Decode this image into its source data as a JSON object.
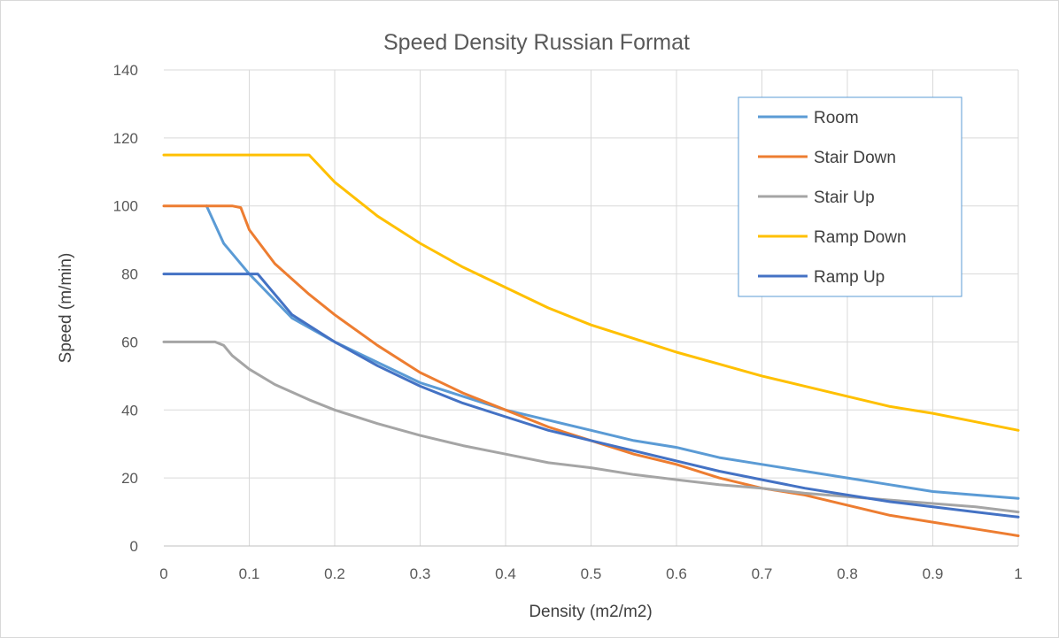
{
  "chart_data": {
    "type": "line",
    "title": "Speed Density Russian Format",
    "xlabel": "Density (m2/m2)",
    "ylabel": "Speed (m/min)",
    "xlim": [
      0,
      1
    ],
    "ylim": [
      0,
      140
    ],
    "xticks": [
      "0",
      "0.1",
      "0.2",
      "0.3",
      "0.4",
      "0.5",
      "0.6",
      "0.7",
      "0.8",
      "0.9",
      "1"
    ],
    "yticks": [
      "0",
      "20",
      "40",
      "60",
      "80",
      "100",
      "120",
      "140"
    ],
    "grid": true,
    "legend_position": "top-right",
    "series": [
      {
        "name": "Room",
        "color": "#5b9bd5",
        "x": [
          0.05,
          0.07,
          0.1,
          0.15,
          0.2,
          0.25,
          0.3,
          0.35,
          0.4,
          0.45,
          0.5,
          0.55,
          0.6,
          0.65,
          0.7,
          0.75,
          0.8,
          0.85,
          0.9,
          0.95,
          1.0
        ],
        "y": [
          100,
          89,
          80,
          67,
          60,
          54,
          48,
          44,
          40,
          37,
          34,
          31,
          29,
          26,
          24,
          22,
          20,
          18,
          16,
          15,
          14
        ]
      },
      {
        "name": "Stair Down",
        "color": "#ed7d31",
        "x": [
          0,
          0.08,
          0.09,
          0.1,
          0.13,
          0.17,
          0.2,
          0.25,
          0.3,
          0.35,
          0.4,
          0.45,
          0.5,
          0.55,
          0.6,
          0.65,
          0.7,
          0.75,
          0.8,
          0.85,
          0.9,
          0.95,
          1.0
        ],
        "y": [
          100,
          100,
          99.5,
          93,
          83,
          74,
          68,
          59,
          51,
          45,
          40,
          35,
          31,
          27,
          24,
          20,
          17,
          15,
          12,
          9,
          7,
          5,
          3
        ]
      },
      {
        "name": "Stair Up",
        "color": "#a5a5a5",
        "x": [
          0,
          0.06,
          0.07,
          0.08,
          0.1,
          0.13,
          0.17,
          0.2,
          0.25,
          0.3,
          0.35,
          0.4,
          0.45,
          0.5,
          0.55,
          0.6,
          0.65,
          0.7,
          0.75,
          0.8,
          0.85,
          0.9,
          0.95,
          1.0
        ],
        "y": [
          60,
          60,
          59,
          56,
          52,
          47.5,
          43,
          40,
          36,
          32.5,
          29.5,
          27,
          24.5,
          23,
          21,
          19.5,
          18,
          17,
          15.5,
          14.5,
          13.5,
          12.5,
          11.5,
          10
        ]
      },
      {
        "name": "Ramp Down",
        "color": "#ffc000",
        "x": [
          0,
          0.17,
          0.2,
          0.25,
          0.3,
          0.35,
          0.4,
          0.45,
          0.5,
          0.55,
          0.6,
          0.65,
          0.7,
          0.75,
          0.8,
          0.85,
          0.9,
          0.95,
          1.0
        ],
        "y": [
          115,
          115,
          107,
          97,
          89,
          82,
          76,
          70,
          65,
          61,
          57,
          53.5,
          50,
          47,
          44,
          41,
          39,
          36.5,
          34
        ]
      },
      {
        "name": "Ramp Up",
        "color": "#4472c4",
        "x": [
          0,
          0.11,
          0.15,
          0.2,
          0.25,
          0.3,
          0.35,
          0.4,
          0.45,
          0.5,
          0.55,
          0.6,
          0.65,
          0.7,
          0.75,
          0.8,
          0.85,
          0.9,
          0.95,
          1.0
        ],
        "y": [
          80,
          80,
          68,
          60,
          53,
          47,
          42,
          38,
          34,
          31,
          28,
          25,
          22,
          19.5,
          17,
          15,
          13,
          11.5,
          10,
          8.5
        ]
      }
    ]
  }
}
